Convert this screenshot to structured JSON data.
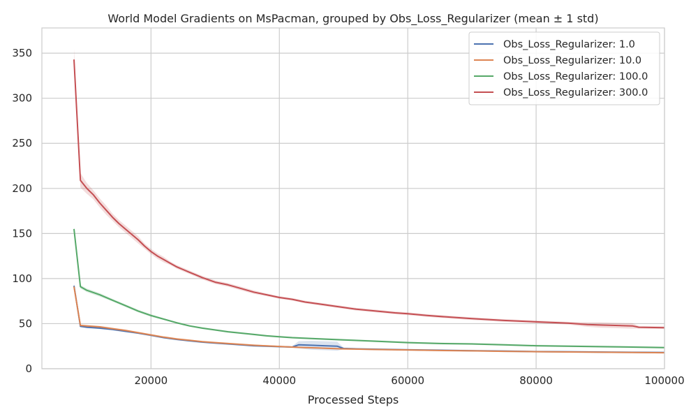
{
  "chart_data": {
    "type": "line",
    "title": "World Model Gradients on MsPacman, grouped by Obs_Loss_Regularizer (mean ± 1 std)",
    "xlabel": "Processed Steps",
    "ylabel": "",
    "xlim": [
      3000,
      100000
    ],
    "ylim": [
      0,
      378
    ],
    "xticks": [
      20000,
      40000,
      60000,
      80000,
      100000
    ],
    "yticks": [
      0,
      50,
      100,
      150,
      200,
      250,
      300,
      350
    ],
    "grid": true,
    "legend_position": "top-right",
    "series": [
      {
        "name": "Obs_Loss_Regularizer: 1.0",
        "color": "#4c72b0",
        "x": [
          8000,
          9000,
          10000,
          12000,
          14000,
          16000,
          18000,
          20000,
          22000,
          24000,
          26000,
          28000,
          30000,
          32000,
          34000,
          36000,
          38000,
          40000,
          42000,
          43000,
          45000,
          47000,
          49000,
          50000,
          52000,
          56000,
          60000,
          65000,
          70000,
          75000,
          80000,
          85000,
          90000,
          95000,
          100000
        ],
        "values": [
          92,
          47,
          46,
          45,
          43.5,
          41.5,
          39.5,
          37,
          34.5,
          32.5,
          31,
          29.5,
          28.5,
          27.5,
          26.5,
          25.5,
          25,
          24.5,
          24,
          26.5,
          26,
          25.5,
          25,
          22.5,
          22,
          21.5,
          21,
          20.5,
          20,
          19.5,
          19,
          18.8,
          18.5,
          18.2,
          18
        ],
        "std": [
          3,
          1,
          1,
          1,
          1,
          1,
          1,
          1,
          1,
          1,
          1,
          1,
          1,
          1,
          1,
          1,
          1,
          1,
          1,
          4,
          5,
          5,
          5,
          1,
          1,
          1,
          1,
          1,
          1,
          1,
          1,
          1,
          1,
          1,
          1
        ]
      },
      {
        "name": "Obs_Loss_Regularizer: 10.0",
        "color": "#dd8452",
        "x": [
          8000,
          9000,
          10000,
          12000,
          14000,
          16000,
          18000,
          20000,
          22000,
          24000,
          26000,
          28000,
          30000,
          32000,
          34000,
          36000,
          38000,
          40000,
          42000,
          44000,
          46000,
          48000,
          50000,
          55000,
          60000,
          65000,
          70000,
          75000,
          80000,
          85000,
          90000,
          95000,
          100000
        ],
        "values": [
          91,
          48,
          47.5,
          46.5,
          44.5,
          42.5,
          40,
          37.5,
          35,
          33,
          31.5,
          30,
          29,
          28,
          27,
          26,
          25.3,
          24.7,
          24,
          23.5,
          23,
          22.5,
          22,
          21.3,
          20.8,
          20.2,
          19.8,
          19.3,
          18.9,
          18.6,
          18.3,
          18,
          17.7
        ],
        "std": [
          2,
          1,
          1,
          1,
          1,
          1,
          1,
          1,
          1,
          1,
          0.8,
          0.8,
          0.8,
          0.8,
          0.8,
          0.8,
          0.8,
          0.8,
          0.8,
          0.8,
          0.8,
          0.8,
          0.8,
          0.6,
          0.6,
          0.6,
          0.6,
          0.6,
          0.6,
          0.6,
          0.6,
          0.6,
          0.6
        ]
      },
      {
        "name": "Obs_Loss_Regularizer: 100.0",
        "color": "#55a868",
        "x": [
          8000,
          9000,
          10000,
          12000,
          14000,
          16000,
          18000,
          20000,
          22000,
          24000,
          26000,
          28000,
          30000,
          32000,
          34000,
          36000,
          38000,
          40000,
          42000,
          45000,
          50000,
          55000,
          60000,
          65000,
          70000,
          75000,
          80000,
          85000,
          90000,
          95000,
          100000
        ],
        "values": [
          155,
          91,
          87,
          82,
          76,
          70,
          64,
          59,
          55,
          51,
          47.5,
          45,
          43,
          41,
          39.5,
          38,
          36.5,
          35.5,
          34.5,
          33.5,
          32,
          30.5,
          29,
          28,
          27.5,
          26.5,
          25.5,
          25,
          24.5,
          24,
          23.5
        ],
        "std": [
          2,
          2,
          2,
          2,
          1.5,
          1.5,
          1.5,
          1.5,
          1,
          1,
          1,
          1,
          1,
          1,
          1,
          1,
          1,
          1,
          1,
          1,
          1,
          1,
          1,
          1,
          1,
          1,
          1,
          1,
          1,
          1,
          1
        ]
      },
      {
        "name": "Obs_Loss_Regularizer: 300.0",
        "color": "#c44e52",
        "x": [
          8000,
          9000,
          10000,
          11000,
          12000,
          13000,
          14000,
          15000,
          16000,
          17000,
          18000,
          19000,
          20000,
          21000,
          22000,
          23000,
          24000,
          25000,
          26000,
          27000,
          28000,
          30000,
          32000,
          34000,
          36000,
          38000,
          40000,
          42000,
          44000,
          46000,
          48000,
          50000,
          52000,
          55000,
          58000,
          60000,
          63000,
          66000,
          70000,
          75000,
          80000,
          85000,
          88000,
          90000,
          95000,
          96000,
          100000
        ],
        "values": [
          343,
          209,
          200,
          193,
          184,
          176,
          168,
          161,
          155,
          149,
          143,
          136,
          130,
          125,
          121,
          117,
          113,
          110,
          107,
          104,
          101,
          96,
          93,
          89,
          85,
          82,
          79,
          77,
          74,
          72,
          70,
          68,
          66,
          64,
          62,
          61,
          59,
          57.5,
          55.5,
          53.5,
          52,
          50.5,
          49,
          48.5,
          47.5,
          46,
          45.5
        ],
        "std": [
          12,
          8,
          6,
          5,
          5,
          5,
          4,
          4,
          4,
          4,
          4,
          3,
          3,
          3,
          3,
          2,
          2,
          2,
          2,
          2,
          2,
          2,
          2,
          2,
          2,
          1.5,
          1.5,
          1.5,
          1.5,
          1.5,
          1.5,
          1.5,
          1.5,
          1.5,
          1.5,
          1.5,
          1.5,
          1.5,
          1.5,
          1.5,
          1.5,
          1.5,
          2.5,
          3,
          3,
          1.5,
          1.5
        ]
      }
    ]
  }
}
